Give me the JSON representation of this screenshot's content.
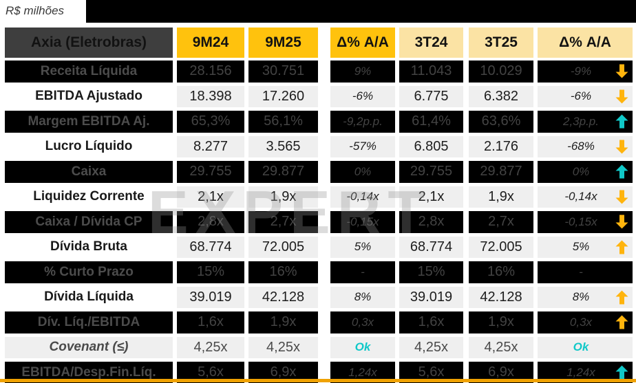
{
  "page": {
    "units_label": "R$ milhões"
  },
  "watermark": "EXPERT",
  "colors": {
    "amber_header": "#ffc20d",
    "pale_yellow_header": "#fbe3a4",
    "title_cell_gray": "#3e3e3e",
    "dark_row_bg": "#000000",
    "light_cell_bg": "#efefef",
    "ok_cyan": "#10c8c8",
    "arrow_yellow": "#ffb40d",
    "arrow_cyan": "#10c8c8",
    "bottom_accent": "#f0a202"
  },
  "table": {
    "header": {
      "label": "Axia (Eletrobras)",
      "columns": [
        {
          "label": "9M24",
          "style": "amber"
        },
        {
          "label": "9M25",
          "style": "amber"
        },
        {
          "label": "Δ% A/A",
          "style": "amber"
        },
        {
          "label": "3T24",
          "style": "pale"
        },
        {
          "label": "3T25",
          "style": "pale"
        },
        {
          "label": "Δ% A/A",
          "style": "pale"
        }
      ]
    },
    "rows": [
      {
        "label": "Receita Líquida",
        "variant": "dark",
        "values": [
          "28.156",
          "30.751",
          "9%",
          "11.043",
          "10.029",
          "-9%"
        ],
        "arrow": "down",
        "arrow_color": "yellow"
      },
      {
        "label": "EBITDA Ajustado",
        "variant": "light",
        "values": [
          "18.398",
          "17.260",
          "-6%",
          "6.775",
          "6.382",
          "-6%"
        ],
        "arrow": "down",
        "arrow_color": "yellow"
      },
      {
        "label": "Margem EBITDA Aj.",
        "variant": "dark",
        "values": [
          "65,3%",
          "56,1%",
          "-9,2p.p.",
          "61,4%",
          "63,6%",
          "2,3p.p."
        ],
        "arrow": "up",
        "arrow_color": "cyan"
      },
      {
        "label": "Lucro Líquido",
        "variant": "light",
        "values": [
          "8.277",
          "3.565",
          "-57%",
          "6.805",
          "2.176",
          "-68%"
        ],
        "arrow": "down",
        "arrow_color": "yellow"
      },
      {
        "label": "Caixa",
        "variant": "dark",
        "values": [
          "29.755",
          "29.877",
          "0%",
          "29.755",
          "29.877",
          "0%"
        ],
        "arrow": "up",
        "arrow_color": "cyan"
      },
      {
        "label": "Liquidez Corrente",
        "variant": "light",
        "values": [
          "2,1x",
          "1,9x",
          "-0,14x",
          "2,1x",
          "1,9x",
          "-0,14x"
        ],
        "arrow": "down",
        "arrow_color": "yellow"
      },
      {
        "label": "Caixa / Dívida CP",
        "variant": "dark",
        "values": [
          "2,8x",
          "2,7x",
          "-0,15x",
          "2,8x",
          "2,7x",
          "-0,15x"
        ],
        "arrow": "down",
        "arrow_color": "yellow"
      },
      {
        "label": "Dívida Bruta",
        "variant": "light",
        "values": [
          "68.774",
          "72.005",
          "5%",
          "68.774",
          "72.005",
          "5%"
        ],
        "arrow": "up",
        "arrow_color": "yellow"
      },
      {
        "label": "% Curto Prazo",
        "variant": "dark",
        "values": [
          "15%",
          "16%",
          "-",
          "15%",
          "16%",
          "-"
        ],
        "arrow": "none",
        "arrow_color": ""
      },
      {
        "label": "Dívida Líquida",
        "variant": "light",
        "values": [
          "39.019",
          "42.128",
          "8%",
          "39.019",
          "42.128",
          "8%"
        ],
        "arrow": "up",
        "arrow_color": "yellow"
      },
      {
        "label": "Dív. Líq./EBITDA",
        "variant": "dark",
        "values": [
          "1,6x",
          "1,9x",
          "0,3x",
          "1,6x",
          "1,9x",
          "0,3x"
        ],
        "arrow": "up",
        "arrow_color": "yellow"
      },
      {
        "label": "Covenant (≤)",
        "variant": "covenant",
        "values": [
          "4,25x",
          "4,25x",
          "Ok",
          "4,25x",
          "4,25x",
          "Ok"
        ],
        "arrow": "none",
        "arrow_color": ""
      },
      {
        "label": "EBITDA/Desp.Fin.Líq.",
        "variant": "dark",
        "values": [
          "5,6x",
          "6,9x",
          "1,24x",
          "5,6x",
          "6,9x",
          "1,24x"
        ],
        "arrow": "up",
        "arrow_color": "cyan"
      }
    ]
  }
}
